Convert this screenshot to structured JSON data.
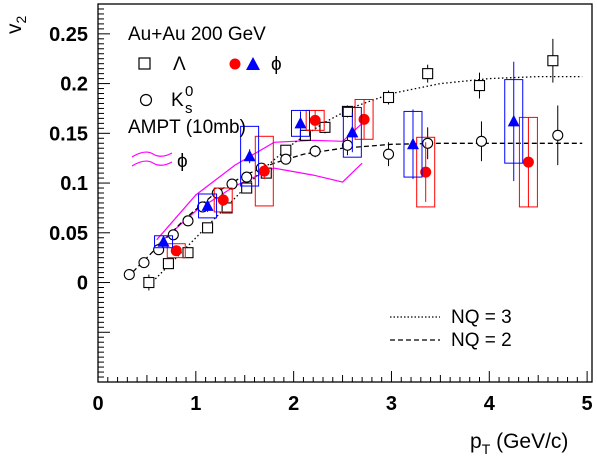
{
  "chart_data": {
    "type": "scatter",
    "title": "",
    "xlabel": "p",
    "xlabel_sub": "T",
    "xlabel_unit": " (GeV/c)",
    "ylabel": "v",
    "ylabel_sub": "2",
    "xlim": [
      0,
      5.05
    ],
    "ylim": [
      -0.1,
      0.28
    ],
    "xticks": [
      0,
      1,
      2,
      3,
      4,
      5
    ],
    "xtick_labels": [
      "0",
      "1",
      "2",
      "3",
      "4",
      "5"
    ],
    "yticks": [
      0,
      0.05,
      0.1,
      0.15,
      0.2,
      0.25
    ],
    "ytick_labels": [
      "0",
      "0.05",
      "0.1",
      "0.15",
      "0.2",
      "0.25"
    ],
    "legend": {
      "header": "Au+Au 200 GeV",
      "lambda_symbol": "Λ",
      "phi_symbol": "ϕ",
      "ks_symbol": "K",
      "ks_sub": "s",
      "ks_sup": "0",
      "ampt_label": "AMPT (10mb)",
      "nq3_label": "NQ = 3",
      "nq2_label": "NQ = 2"
    },
    "colors": {
      "red": "#ff0000",
      "blue": "#0000ff",
      "ampt": "#ff00ff",
      "black": "#000000"
    },
    "series": [
      {
        "name": "Λ",
        "marker": "open-square",
        "color": "#000000",
        "points": [
          {
            "x": 0.52,
            "y": 0.0,
            "err": 0.008
          },
          {
            "x": 0.72,
            "y": 0.019,
            "err": 0.005
          },
          {
            "x": 0.92,
            "y": 0.03,
            "err": 0.004
          },
          {
            "x": 1.12,
            "y": 0.055,
            "err": 0.004
          },
          {
            "x": 1.32,
            "y": 0.075,
            "err": 0.004
          },
          {
            "x": 1.52,
            "y": 0.095,
            "err": 0.004
          },
          {
            "x": 1.72,
            "y": 0.11,
            "err": 0.004
          },
          {
            "x": 1.92,
            "y": 0.133,
            "err": 0.004
          },
          {
            "x": 2.12,
            "y": 0.148,
            "err": 0.005
          },
          {
            "x": 2.32,
            "y": 0.156,
            "err": 0.006
          },
          {
            "x": 2.55,
            "y": 0.172,
            "err": 0.006
          },
          {
            "x": 2.97,
            "y": 0.186,
            "err": 0.007
          },
          {
            "x": 3.37,
            "y": 0.21,
            "err": 0.009
          },
          {
            "x": 3.9,
            "y": 0.198,
            "err": 0.013
          },
          {
            "x": 4.65,
            "y": 0.223,
            "err": 0.022
          }
        ]
      },
      {
        "name": "K",
        "marker": "open-circle",
        "color": "#000000",
        "points": [
          {
            "x": 0.32,
            "y": 0.008,
            "err": 0.005
          },
          {
            "x": 0.47,
            "y": 0.02,
            "err": 0.004
          },
          {
            "x": 0.62,
            "y": 0.033,
            "err": 0.004
          },
          {
            "x": 0.77,
            "y": 0.048,
            "err": 0.004
          },
          {
            "x": 0.92,
            "y": 0.062,
            "err": 0.004
          },
          {
            "x": 1.07,
            "y": 0.076,
            "err": 0.004
          },
          {
            "x": 1.22,
            "y": 0.09,
            "err": 0.004
          },
          {
            "x": 1.37,
            "y": 0.099,
            "err": 0.004
          },
          {
            "x": 1.52,
            "y": 0.106,
            "err": 0.004
          },
          {
            "x": 1.67,
            "y": 0.115,
            "err": 0.004
          },
          {
            "x": 1.92,
            "y": 0.124,
            "err": 0.005
          },
          {
            "x": 2.22,
            "y": 0.132,
            "err": 0.006
          },
          {
            "x": 2.55,
            "y": 0.138,
            "err": 0.01
          },
          {
            "x": 2.97,
            "y": 0.129,
            "err": 0.012
          },
          {
            "x": 3.37,
            "y": 0.14,
            "err": 0.016
          },
          {
            "x": 3.92,
            "y": 0.142,
            "err": 0.02
          },
          {
            "x": 4.7,
            "y": 0.148,
            "err": 0.03
          }
        ]
      },
      {
        "name": "ϕ",
        "marker": "filled-circle",
        "color": "#ff0000",
        "points": [
          {
            "x": 0.8,
            "y": 0.032,
            "err": 0.004,
            "sys": 0.007
          },
          {
            "x": 1.28,
            "y": 0.083,
            "err": 0.006,
            "sys": 0.012
          },
          {
            "x": 1.7,
            "y": 0.112,
            "err": 0.008,
            "sys": 0.035
          },
          {
            "x": 2.22,
            "y": 0.163,
            "err": 0.01,
            "sys": 0.01
          },
          {
            "x": 2.72,
            "y": 0.164,
            "err": 0.02,
            "sys": 0.02
          },
          {
            "x": 3.35,
            "y": 0.111,
            "err": 0.03,
            "sys": 0.035
          },
          {
            "x": 4.4,
            "y": 0.121,
            "err": 0.045,
            "sys": 0.045
          }
        ]
      },
      {
        "name": "ϕ",
        "marker": "filled-triangle",
        "color": "#0000ff",
        "points": [
          {
            "x": 0.67,
            "y": 0.041,
            "err": 0.004,
            "sys": 0.006
          },
          {
            "x": 1.12,
            "y": 0.077,
            "err": 0.006,
            "sys": 0.012
          },
          {
            "x": 1.55,
            "y": 0.127,
            "err": 0.007,
            "sys": 0.03
          },
          {
            "x": 2.07,
            "y": 0.16,
            "err": 0.012,
            "sys": 0.013
          },
          {
            "x": 2.6,
            "y": 0.151,
            "err": 0.02,
            "sys": 0.025
          },
          {
            "x": 3.22,
            "y": 0.139,
            "err": 0.035,
            "sys": 0.033
          },
          {
            "x": 4.25,
            "y": 0.162,
            "err": 0.06,
            "sys": 0.042
          }
        ]
      },
      {
        "name": "AMPT (10mb)",
        "type": "band",
        "color": "#ff00ff",
        "upper": [
          [
            0.6,
            0.043
          ],
          [
            1.0,
            0.088
          ],
          [
            1.4,
            0.118
          ],
          [
            1.8,
            0.141
          ],
          [
            2.2,
            0.143
          ],
          [
            2.5,
            0.142
          ],
          [
            2.7,
            0.16
          ]
        ],
        "lower": [
          [
            0.6,
            0.037
          ],
          [
            1.0,
            0.072
          ],
          [
            1.4,
            0.097
          ],
          [
            1.8,
            0.115
          ],
          [
            2.2,
            0.108
          ],
          [
            2.5,
            0.101
          ],
          [
            2.7,
            0.12
          ]
        ]
      },
      {
        "name": "NQ = 3",
        "type": "curve",
        "style": "dotted",
        "points": [
          [
            0.5,
            -0.005
          ],
          [
            0.8,
            0.025
          ],
          [
            1.1,
            0.055
          ],
          [
            1.4,
            0.085
          ],
          [
            1.7,
            0.115
          ],
          [
            2.0,
            0.14
          ],
          [
            2.3,
            0.16
          ],
          [
            2.6,
            0.176
          ],
          [
            3.0,
            0.19
          ],
          [
            3.5,
            0.2
          ],
          [
            4.0,
            0.205
          ],
          [
            4.5,
            0.207
          ],
          [
            4.95,
            0.207
          ]
        ]
      },
      {
        "name": "NQ = 2",
        "type": "curve",
        "style": "dashed",
        "points": [
          [
            0.3,
            0.005
          ],
          [
            0.6,
            0.035
          ],
          [
            0.9,
            0.065
          ],
          [
            1.2,
            0.09
          ],
          [
            1.5,
            0.108
          ],
          [
            1.8,
            0.12
          ],
          [
            2.1,
            0.129
          ],
          [
            2.5,
            0.135
          ],
          [
            3.0,
            0.139
          ],
          [
            3.5,
            0.14
          ],
          [
            4.0,
            0.14
          ],
          [
            4.95,
            0.14
          ]
        ]
      }
    ]
  }
}
